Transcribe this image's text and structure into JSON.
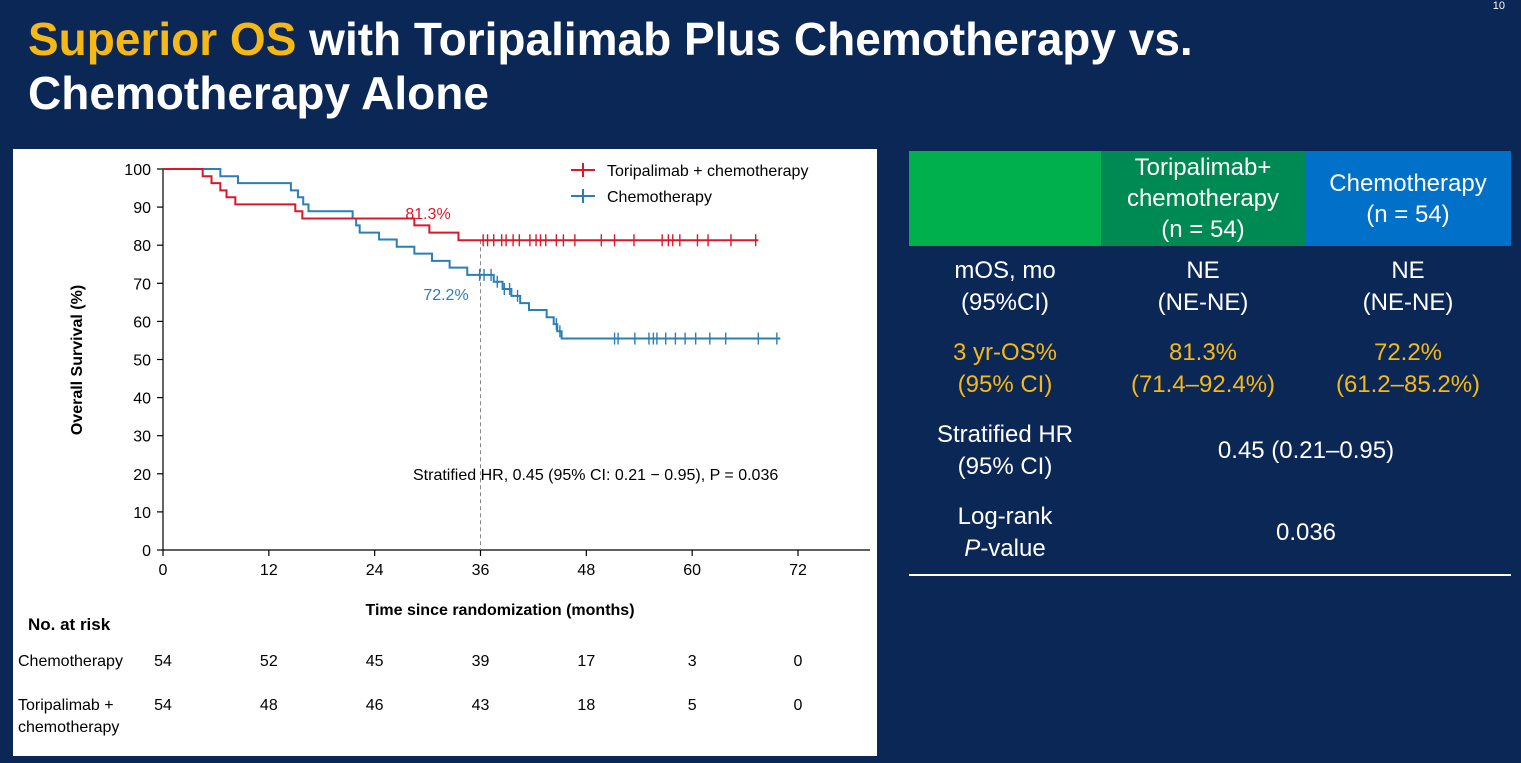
{
  "page_number": "10",
  "title": {
    "highlight": "Superior OS",
    "rest": " with Toripalimab Plus Chemotherapy vs. Chemotherapy Alone"
  },
  "colors": {
    "background": "#0a2756",
    "highlight": "#f6b817",
    "tori": "#d9192b",
    "chemo": "#2b7eb6"
  },
  "chart_data": {
    "type": "line",
    "subtype": "kaplan-meier",
    "xlabel": "Time since randomization (months)",
    "ylabel": "Overall Survival (%)",
    "xlim": [
      0,
      72
    ],
    "ylim": [
      0,
      100
    ],
    "xticks": [
      0,
      12,
      24,
      36,
      48,
      60,
      72
    ],
    "yticks": [
      0,
      10,
      20,
      30,
      40,
      50,
      60,
      70,
      80,
      90,
      100
    ],
    "legend_position": "top-right",
    "series": [
      {
        "name": "Toripalimab + chemotherapy",
        "color": "#d9192b",
        "steps": [
          [
            0,
            100
          ],
          [
            4.5,
            98.1
          ],
          [
            5.5,
            96.3
          ],
          [
            6.5,
            94.4
          ],
          [
            7.2,
            92.6
          ],
          [
            8.2,
            90.7
          ],
          [
            15,
            88.9
          ],
          [
            15.8,
            87.0
          ],
          [
            28.5,
            85.2
          ],
          [
            30.2,
            83.3
          ],
          [
            33.5,
            81.3
          ],
          [
            67.5,
            81.3
          ]
        ],
        "censor": [
          36.3,
          36.8,
          37.5,
          38.4,
          38.9,
          39.7,
          40.4,
          41.6,
          42.3,
          42.8,
          43.4,
          44.6,
          45.4,
          46.7,
          49.7,
          51.2,
          53.4,
          56.6,
          57.3,
          57.8,
          58.6,
          60.6,
          61.8,
          64.4,
          67.2
        ]
      },
      {
        "name": "Chemotherapy",
        "color": "#2b7eb6",
        "steps": [
          [
            0,
            100
          ],
          [
            6.5,
            98.1
          ],
          [
            8.5,
            96.3
          ],
          [
            14.5,
            94.4
          ],
          [
            15.3,
            92.6
          ],
          [
            15.9,
            90.7
          ],
          [
            16.5,
            88.9
          ],
          [
            21.5,
            87.0
          ],
          [
            21.9,
            85.2
          ],
          [
            22.3,
            83.3
          ],
          [
            24.5,
            81.5
          ],
          [
            26.5,
            79.6
          ],
          [
            28.5,
            77.8
          ],
          [
            30.5,
            75.9
          ],
          [
            32.5,
            74.1
          ],
          [
            34.5,
            72.2
          ],
          [
            37.5,
            70.4
          ],
          [
            38.5,
            68.5
          ],
          [
            39.5,
            66.7
          ],
          [
            40.5,
            64.8
          ],
          [
            41.5,
            63.0
          ],
          [
            43.5,
            61.1
          ],
          [
            44.3,
            59.3
          ],
          [
            44.7,
            57.4
          ],
          [
            45.2,
            55.5
          ],
          [
            70.0,
            55.5
          ]
        ],
        "censor": [
          35.9,
          36.4,
          37.2,
          37.9,
          38.7,
          39.3,
          40.2,
          44.6,
          45.0,
          51.2,
          51.6,
          53.5,
          55.1,
          55.6,
          56.0,
          57.0,
          58.1,
          59.2,
          60.4,
          62.0,
          63.8,
          67.5,
          69.6
        ]
      }
    ],
    "annotations": {
      "tori_label": "81.3%",
      "chemo_label": "72.2%",
      "reference_x": 36,
      "hr_text": "Stratified HR, 0.45 (95% CI: 0.21 − 0.95), P = 0.036"
    },
    "risk_table": {
      "title": "No. at risk",
      "rows": [
        {
          "label_line1": "Chemotherapy",
          "label_line2": "",
          "values": [
            "54",
            "52",
            "45",
            "39",
            "17",
            "3",
            "0"
          ]
        },
        {
          "label_line1": "Toripalimab +",
          "label_line2": "chemotherapy",
          "values": [
            "54",
            "48",
            "46",
            "43",
            "18",
            "5",
            "0"
          ]
        }
      ]
    }
  },
  "table": {
    "headers": [
      {
        "line1": "",
        "line2": "",
        "line3": ""
      },
      {
        "line1": "Toripalimab+",
        "line2": "chemotherapy",
        "line3": "(n = 54)"
      },
      {
        "line1": "Chemotherapy",
        "line2": "(n = 54)",
        "line3": ""
      }
    ],
    "rows": [
      {
        "label_line1": "mOS, mo",
        "label_line2": "(95%CI)",
        "tori_line1": "NE",
        "tori_line2": "(NE-NE)",
        "chemo_line1": "NE",
        "chemo_line2": "(NE-NE)"
      },
      {
        "label_line1": "3 yr-OS%",
        "label_line2": "(95% CI)",
        "tori_line1": "81.3%",
        "tori_line2": "(71.4–92.4%)",
        "chemo_line1": "72.2%",
        "chemo_line2": "(61.2–85.2%)"
      },
      {
        "label_line1": "Stratified HR",
        "label_line2": "(95% CI)",
        "merged": "0.45 (0.21–0.95)"
      },
      {
        "label_line1": "Log-rank",
        "label_italic": "P",
        "label_rest": "-value",
        "merged": "0.036"
      }
    ]
  }
}
